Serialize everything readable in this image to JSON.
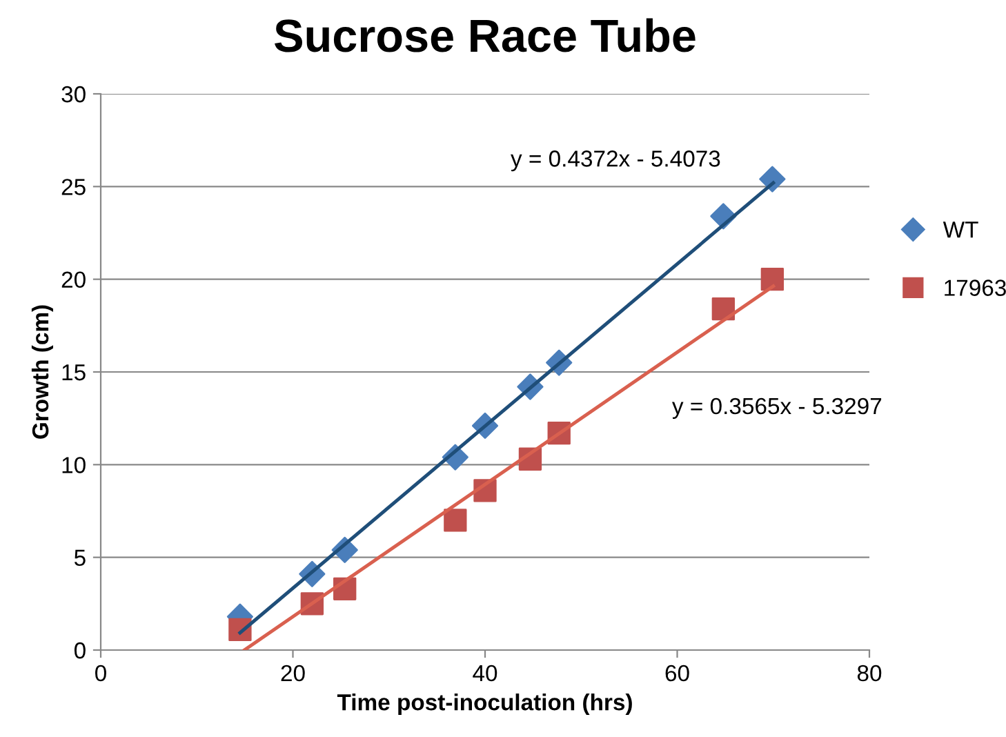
{
  "chart_data": {
    "type": "scatter",
    "title": "Sucrose Race Tube",
    "xlabel": "Time post-inoculation (hrs)",
    "ylabel": "Growth (cm)",
    "xlim": [
      0,
      80
    ],
    "xticks": [
      0,
      20,
      40,
      60,
      80
    ],
    "ylim": [
      0,
      30
    ],
    "yticks": [
      0,
      5,
      10,
      15,
      20,
      25,
      30
    ],
    "grid": "y",
    "legend": "right",
    "series": [
      {
        "type": "line",
        "color": "#1f4e79",
        "marker": "none",
        "x": [
          14.5,
          70
        ],
        "values": [
          0.93,
          25.2
        ]
      },
      {
        "type": "line",
        "color": "#d9604f",
        "marker": "none",
        "x": [
          14.95,
          70
        ],
        "values": [
          0,
          19.63
        ]
      },
      {
        "name": "WT",
        "color": "#4a7ebb",
        "marker": "diamond",
        "x": [
          14.5,
          22.0,
          25.4,
          36.9,
          40.0,
          44.7,
          47.7,
          64.8,
          69.9
        ],
        "values": [
          1.8,
          4.1,
          5.4,
          10.4,
          12.1,
          14.2,
          15.5,
          23.4,
          25.4
        ]
      },
      {
        "name": "17963",
        "color": "#c0504d",
        "marker": "square",
        "x": [
          14.5,
          22.0,
          25.4,
          36.9,
          40.0,
          44.7,
          47.7,
          64.8,
          69.9
        ],
        "values": [
          1.1,
          2.5,
          3.3,
          7.0,
          8.6,
          10.3,
          11.7,
          18.4,
          20.0
        ]
      }
    ],
    "annotations": [
      "y = 0.4372x - 5.4073",
      "y = 0.3565x - 5.3297"
    ]
  }
}
